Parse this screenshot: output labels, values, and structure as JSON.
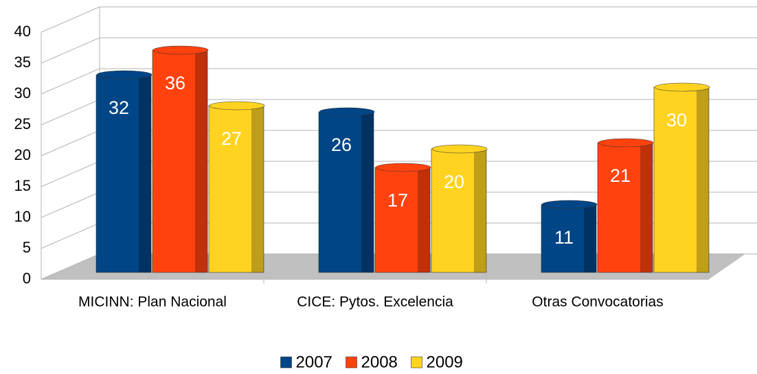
{
  "chart_data": {
    "type": "bar3d",
    "categories": [
      "MICINN: Plan Nacional",
      "CICE: Pytos. Excelencia",
      "Otras Convocatorias"
    ],
    "series": [
      {
        "name": "2007",
        "color": "#004586",
        "values": [
          32,
          26,
          11
        ]
      },
      {
        "name": "2008",
        "color": "#ff420e",
        "values": [
          36,
          17,
          21
        ]
      },
      {
        "name": "2009",
        "color": "#ffd320",
        "values": [
          27,
          20,
          30
        ]
      }
    ],
    "ylim": [
      0,
      40
    ],
    "yticks": [
      0,
      5,
      10,
      15,
      20,
      25,
      30,
      35,
      40
    ],
    "grid": true,
    "legend": "bottom"
  }
}
